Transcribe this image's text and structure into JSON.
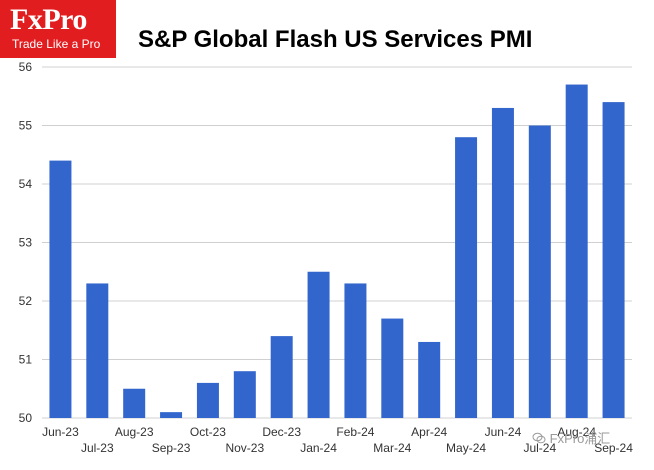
{
  "logo": {
    "brand": "FxPro",
    "tagline": "Trade Like a Pro"
  },
  "watermark": {
    "text": "FxPro浦汇",
    "icon": "wechat-icon"
  },
  "colors": {
    "bar": "#3366cc",
    "grid": "#d0d0d0",
    "logo_bg": "#e11d20"
  },
  "chart_data": {
    "type": "bar",
    "title": "S&P Global Flash US Services PMI",
    "xlabel": "",
    "ylabel": "",
    "ylim": [
      50,
      56
    ],
    "y_ticks": [
      50,
      51,
      52,
      53,
      54,
      55,
      56
    ],
    "grid": true,
    "legend": "none",
    "categories": [
      "Jun-23",
      "Jul-23",
      "Aug-23",
      "Sep-23",
      "Oct-23",
      "Nov-23",
      "Dec-23",
      "Jan-24",
      "Feb-24",
      "Mar-24",
      "Apr-24",
      "May-24",
      "Jun-24",
      "Jul-24",
      "Aug-24",
      "Sep-24"
    ],
    "values": [
      54.4,
      52.3,
      50.5,
      50.1,
      50.6,
      50.8,
      51.4,
      52.5,
      52.3,
      51.7,
      51.3,
      54.8,
      55.3,
      55.0,
      55.7,
      55.4
    ]
  }
}
